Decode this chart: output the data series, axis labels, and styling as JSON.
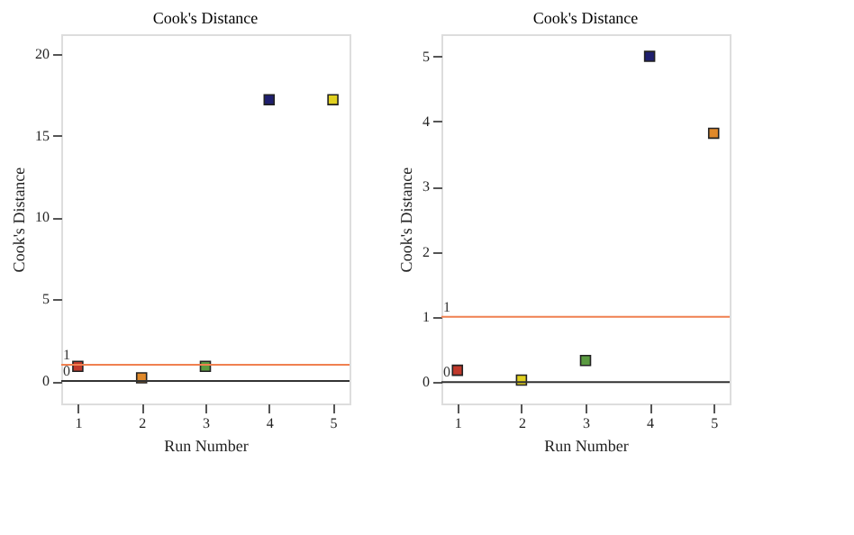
{
  "chart_data": [
    {
      "type": "scatter",
      "title": "Cook's Distance",
      "xlabel": "Run Number",
      "ylabel": "Cook's Distance",
      "x": [
        1,
        2,
        3,
        4,
        5
      ],
      "values": [
        0.9,
        0.2,
        0.9,
        17.2,
        17.2
      ],
      "colors": [
        "#c0392b",
        "#e0892a",
        "#5a9a40",
        "#1f1f6e",
        "#e0d020"
      ],
      "marker": "square",
      "xlim": [
        0.74,
        5.26
      ],
      "xticks": [
        1,
        2,
        3,
        4,
        5
      ],
      "ylim": [
        -1.37,
        21.2
      ],
      "yticks": [
        0,
        5,
        10,
        15,
        20
      ],
      "grid": false,
      "legend": false,
      "ref_lines": [
        {
          "axis": "y",
          "value": 1,
          "label": "1",
          "color": "#f08050"
        },
        {
          "axis": "y",
          "value": 0,
          "label": "0",
          "color": "#333333"
        }
      ]
    },
    {
      "type": "scatter",
      "title": "Cook's Distance",
      "xlabel": "Run Number",
      "ylabel": "Cook's Distance",
      "x": [
        1,
        2,
        3,
        4,
        5
      ],
      "values": [
        0.18,
        0.03,
        0.33,
        5.0,
        3.82
      ],
      "colors": [
        "#c0392b",
        "#e0d020",
        "#5a9a40",
        "#1f1f6e",
        "#e0892a"
      ],
      "marker": "square",
      "xlim": [
        0.75,
        5.25
      ],
      "xticks": [
        1,
        2,
        3,
        4,
        5
      ],
      "ylim": [
        -0.33,
        5.34
      ],
      "yticks": [
        0,
        1,
        2,
        3,
        4,
        5
      ],
      "grid": false,
      "legend": false,
      "ref_lines": [
        {
          "axis": "y",
          "value": 1,
          "label": "1",
          "color": "#f08050"
        },
        {
          "axis": "y",
          "value": 0,
          "label": "0",
          "color": "#333333"
        }
      ]
    }
  ]
}
